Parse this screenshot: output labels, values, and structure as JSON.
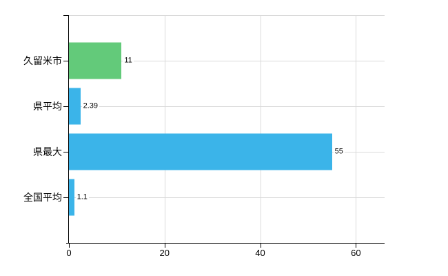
{
  "chart_data": {
    "type": "bar",
    "orientation": "horizontal",
    "categories": [
      "久留米市",
      "県平均",
      "県最大",
      "全国平均"
    ],
    "values": [
      11,
      2.39,
      55,
      1.1
    ],
    "value_labels": [
      "11",
      "2.39",
      "55",
      "1.1"
    ],
    "series": [
      {
        "name": "",
        "values": [
          11,
          2.39,
          55,
          1.1
        ]
      }
    ],
    "bar_colors": [
      "#63ca7a",
      "#3bb4e9",
      "#3bb4e9",
      "#3bb4e9"
    ],
    "xticks": [
      0,
      20,
      40,
      60
    ],
    "xlim": [
      0,
      66
    ],
    "grid": true,
    "legend": "none",
    "colors": {
      "green_bar": "#63ca7a",
      "blue_bar": "#3bb4e9",
      "gridline": "#d9d9d9",
      "axis": "#000000",
      "text": "#000000",
      "background": "#ffffff"
    }
  }
}
